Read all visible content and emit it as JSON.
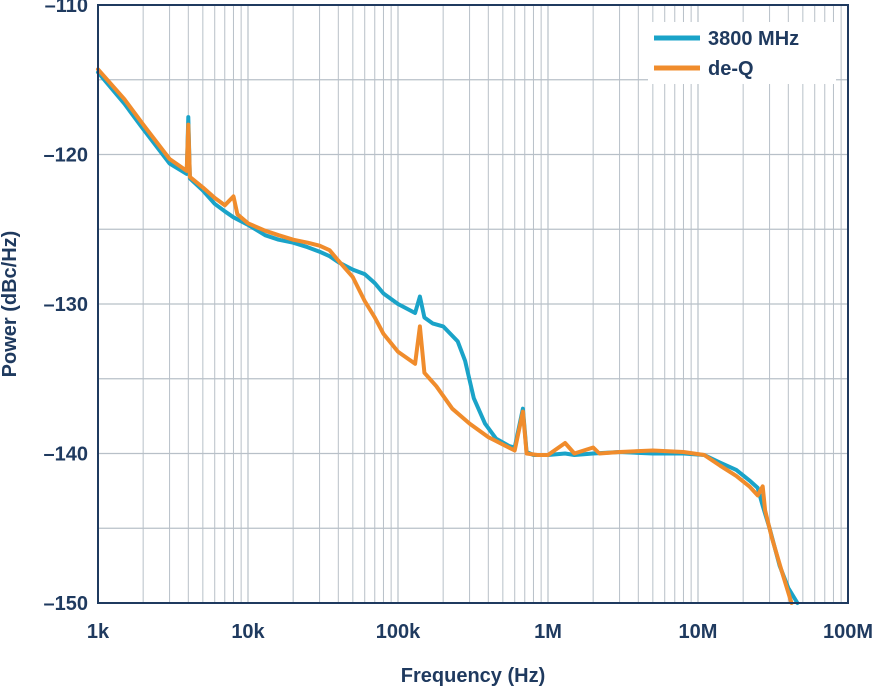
{
  "chart_data": {
    "type": "line",
    "xlabel": "Frequency (Hz)",
    "ylabel": "Power (dBc/Hz)",
    "x_scale": "log",
    "xlim": [
      1000,
      100000000
    ],
    "ylim": [
      -150,
      -110
    ],
    "grid": true,
    "legend_position": "top-right",
    "x_ticks": [
      {
        "value": 1000,
        "label": "1k"
      },
      {
        "value": 10000,
        "label": "10k"
      },
      {
        "value": 100000,
        "label": "100k"
      },
      {
        "value": 1000000,
        "label": "1M"
      },
      {
        "value": 10000000,
        "label": "10M"
      },
      {
        "value": 100000000,
        "label": "100M"
      }
    ],
    "y_ticks": [
      {
        "value": -110,
        "label": "–110"
      },
      {
        "value": -120,
        "label": "–120"
      },
      {
        "value": -130,
        "label": "–130"
      },
      {
        "value": -140,
        "label": "–140"
      },
      {
        "value": -150,
        "label": "–150"
      }
    ],
    "series": [
      {
        "name": "3800 MHz",
        "color": "#1aa3c8",
        "points": [
          [
            1000,
            -114.5
          ],
          [
            1500,
            -116.6
          ],
          [
            2000,
            -118.3
          ],
          [
            3000,
            -120.6
          ],
          [
            3900,
            -121.3
          ],
          [
            4000,
            -117.5
          ],
          [
            4100,
            -121.6
          ],
          [
            5000,
            -122.4
          ],
          [
            6000,
            -123.3
          ],
          [
            7000,
            -123.8
          ],
          [
            8000,
            -124.2
          ],
          [
            10000,
            -124.7
          ],
          [
            13000,
            -125.4
          ],
          [
            16000,
            -125.7
          ],
          [
            20000,
            -125.9
          ],
          [
            25000,
            -126.2
          ],
          [
            30000,
            -126.5
          ],
          [
            35000,
            -126.8
          ],
          [
            40000,
            -127.2
          ],
          [
            50000,
            -127.7
          ],
          [
            60000,
            -128.0
          ],
          [
            70000,
            -128.6
          ],
          [
            80000,
            -129.3
          ],
          [
            100000,
            -130.0
          ],
          [
            130000,
            -130.6
          ],
          [
            140000,
            -129.5
          ],
          [
            150000,
            -130.9
          ],
          [
            170000,
            -131.3
          ],
          [
            200000,
            -131.5
          ],
          [
            250000,
            -132.5
          ],
          [
            280000,
            -133.8
          ],
          [
            320000,
            -136.3
          ],
          [
            380000,
            -138.0
          ],
          [
            450000,
            -139.0
          ],
          [
            550000,
            -139.5
          ],
          [
            600000,
            -139.6
          ],
          [
            680000,
            -137.0
          ],
          [
            720000,
            -139.9
          ],
          [
            800000,
            -140.1
          ],
          [
            1000000,
            -140.1
          ],
          [
            1300000,
            -140.0
          ],
          [
            1500000,
            -140.1
          ],
          [
            2000000,
            -140.0
          ],
          [
            3000000,
            -139.9
          ],
          [
            5000000,
            -140.0
          ],
          [
            8000000,
            -140.0
          ],
          [
            11000000,
            -140.1
          ],
          [
            14000000,
            -140.6
          ],
          [
            18000000,
            -141.1
          ],
          [
            22000000,
            -141.8
          ],
          [
            25000000,
            -142.3
          ],
          [
            27000000,
            -143.5
          ],
          [
            30000000,
            -145.0
          ],
          [
            35000000,
            -147.5
          ],
          [
            40000000,
            -149.0
          ],
          [
            46000000,
            -150.0
          ]
        ]
      },
      {
        "name": "de-Q",
        "color": "#f08c2c",
        "points": [
          [
            1000,
            -114.3
          ],
          [
            1500,
            -116.3
          ],
          [
            2000,
            -118.0
          ],
          [
            3000,
            -120.3
          ],
          [
            3900,
            -121.1
          ],
          [
            4000,
            -118.0
          ],
          [
            4100,
            -121.5
          ],
          [
            5000,
            -122.2
          ],
          [
            6000,
            -122.9
          ],
          [
            7000,
            -123.4
          ],
          [
            8000,
            -122.8
          ],
          [
            8500,
            -124.0
          ],
          [
            10000,
            -124.6
          ],
          [
            13000,
            -125.1
          ],
          [
            16000,
            -125.4
          ],
          [
            20000,
            -125.7
          ],
          [
            25000,
            -125.9
          ],
          [
            30000,
            -126.1
          ],
          [
            35000,
            -126.4
          ],
          [
            40000,
            -127.1
          ],
          [
            50000,
            -128.2
          ],
          [
            60000,
            -129.8
          ],
          [
            70000,
            -130.9
          ],
          [
            80000,
            -132.0
          ],
          [
            100000,
            -133.2
          ],
          [
            130000,
            -134.0
          ],
          [
            140000,
            -131.5
          ],
          [
            150000,
            -134.6
          ],
          [
            180000,
            -135.5
          ],
          [
            230000,
            -137.0
          ],
          [
            300000,
            -138.0
          ],
          [
            400000,
            -138.9
          ],
          [
            500000,
            -139.4
          ],
          [
            600000,
            -139.8
          ],
          [
            680000,
            -137.2
          ],
          [
            720000,
            -140.0
          ],
          [
            850000,
            -140.1
          ],
          [
            1000000,
            -140.1
          ],
          [
            1300000,
            -139.3
          ],
          [
            1500000,
            -140.0
          ],
          [
            2000000,
            -139.6
          ],
          [
            2200000,
            -140.0
          ],
          [
            3000000,
            -139.9
          ],
          [
            5000000,
            -139.8
          ],
          [
            8000000,
            -139.9
          ],
          [
            11000000,
            -140.1
          ],
          [
            14000000,
            -140.8
          ],
          [
            18000000,
            -141.5
          ],
          [
            22000000,
            -142.2
          ],
          [
            25000000,
            -142.8
          ],
          [
            27000000,
            -142.2
          ],
          [
            28000000,
            -143.8
          ],
          [
            31000000,
            -145.6
          ],
          [
            36000000,
            -147.8
          ],
          [
            42000000,
            -150.0
          ]
        ]
      }
    ]
  }
}
